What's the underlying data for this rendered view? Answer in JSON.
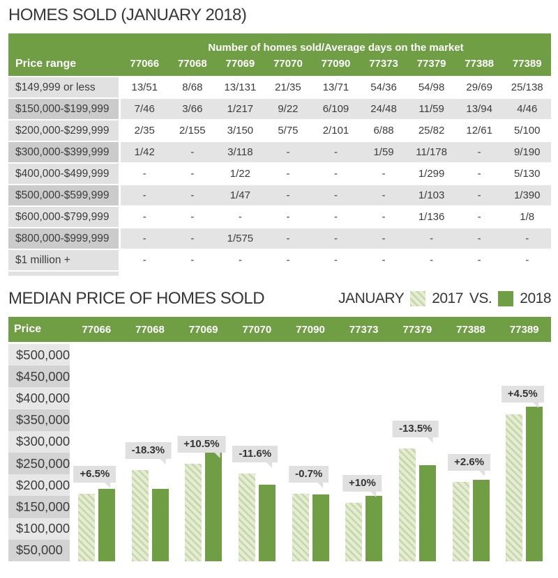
{
  "colors": {
    "green": "#6f9e44",
    "hatch_base": "#e4ecd4",
    "hatch_stripe": "#c5d7a6",
    "label_column_light": "#e1e1e1",
    "label_column_dark": "#cbcbcb",
    "row_stripe": "#e4e4e4",
    "axis_box_light": "#e7e7e7",
    "axis_box_dark": "#d3d3d3",
    "callout_bg": "#e0e0e0"
  },
  "homes_sold_table": {
    "title": "HOMES SOLD (JANUARY 2018)",
    "header_note": "Number of homes sold/Average days on the market",
    "row_header": "Price range",
    "zip_codes": [
      "77066",
      "77068",
      "77069",
      "77070",
      "77090",
      "77373",
      "77379",
      "77388",
      "77389"
    ],
    "rows": [
      {
        "label": "$149,999 or less",
        "values": [
          "13/51",
          "8/68",
          "13/131",
          "21/35",
          "13/71",
          "54/36",
          "54/98",
          "29/69",
          "25/138"
        ]
      },
      {
        "label": "$150,000-$199,999",
        "values": [
          "7/46",
          "3/66",
          "1/217",
          "9/22",
          "6/109",
          "24/48",
          "11/59",
          "13/94",
          "4/46"
        ]
      },
      {
        "label": "$200,000-$299,999",
        "values": [
          "2/35",
          "2/155",
          "3/150",
          "5/75",
          "2/101",
          "6/88",
          "25/82",
          "12/61",
          "5/100"
        ]
      },
      {
        "label": "$300,000-$399,999",
        "values": [
          "1/42",
          "-",
          "3/118",
          "-",
          "-",
          "1/59",
          "11/178",
          "-",
          "9/190"
        ]
      },
      {
        "label": "$400,000-$499,999",
        "values": [
          "-",
          "-",
          "1/22",
          "-",
          "-",
          "-",
          "1/299",
          "-",
          "5/130"
        ]
      },
      {
        "label": "$500,000-$599,999",
        "values": [
          "-",
          "-",
          "1/47",
          "-",
          "-",
          "-",
          "1/103",
          "-",
          "1/390"
        ]
      },
      {
        "label": "$600,000-$799,999",
        "values": [
          "-",
          "-",
          "-",
          "-",
          "-",
          "-",
          "1/136",
          "-",
          "1/8"
        ]
      },
      {
        "label": "$800,000-$999,999",
        "values": [
          "-",
          "-",
          "1/575",
          "-",
          "-",
          "-",
          "-",
          "-",
          "-"
        ]
      },
      {
        "label": "$1 million +",
        "values": [
          "-",
          "-",
          "-",
          "-",
          "-",
          "-",
          "-",
          "-",
          "-"
        ]
      }
    ]
  },
  "median_price_chart": {
    "title": "MEDIAN PRICE OF HOMES SOLD",
    "legend": {
      "prefix": "JANUARY",
      "label_2017": "2017",
      "separator": "VS.",
      "label_2018": "2018"
    },
    "price_header": "Price",
    "y_tick_labels": [
      "$500,000",
      "$450,000",
      "$400,000",
      "$350,000",
      "$300,000",
      "$250,000",
      "$200,000",
      "$150,000",
      "$100,000",
      "$50,000"
    ]
  },
  "chart_data": {
    "type": "bar",
    "title": "MEDIAN PRICE OF HOMES SOLD",
    "legend_entries": [
      "JANUARY 2017",
      "JANUARY 2018"
    ],
    "legend_position": "top-right",
    "categories": [
      "77066",
      "77068",
      "77069",
      "77070",
      "77090",
      "77373",
      "77379",
      "77388",
      "77389"
    ],
    "series": [
      {
        "name": "January 2017",
        "values": [
          180000,
          235000,
          250000,
          227000,
          180000,
          160000,
          285000,
          207000,
          364000
        ]
      },
      {
        "name": "January 2018",
        "values": [
          191700,
          192000,
          276300,
          200700,
          178700,
          176000,
          246500,
          212400,
          380400
        ]
      }
    ],
    "percent_change_labels": [
      "+6.5%",
      "-18.3%",
      "+10.5%",
      "-11.6%",
      "-0.7%",
      "+10%",
      "-13.5%",
      "+2.6%",
      "+4.5%"
    ],
    "ylabel": "Price",
    "ytick_step": 50000,
    "ylim": [
      25000,
      525000
    ],
    "grid": false
  }
}
